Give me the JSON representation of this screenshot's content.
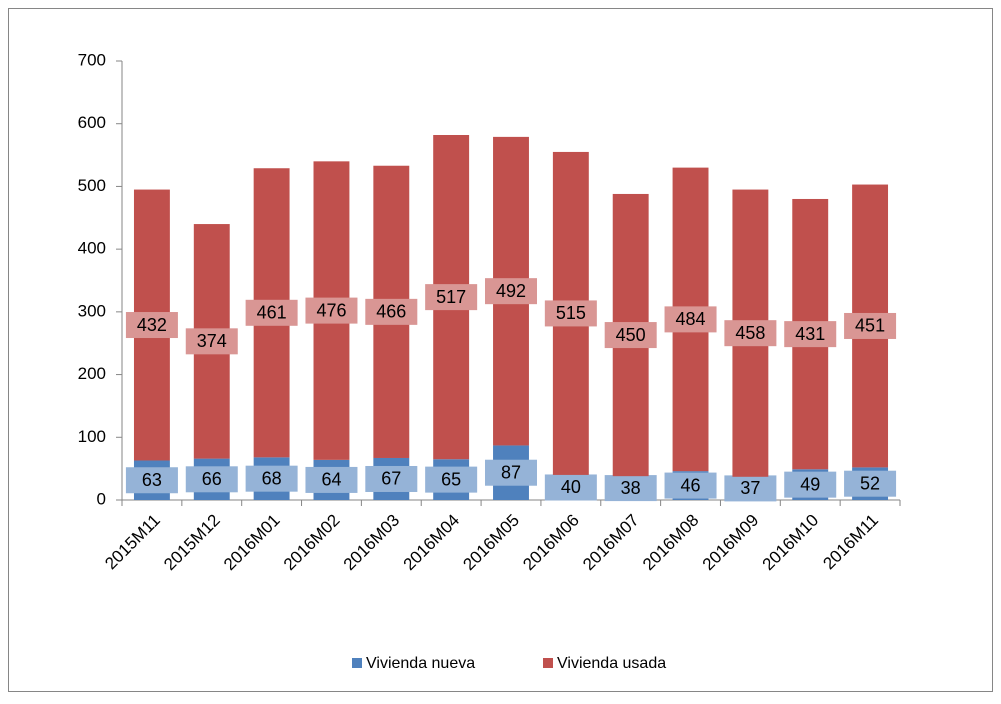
{
  "chart_data": {
    "type": "stacked-bar",
    "categories": [
      "2015M11",
      "2015M12",
      "2016M01",
      "2016M02",
      "2016M03",
      "2016M04",
      "2016M05",
      "2016M06",
      "2016M07",
      "2016M08",
      "2016M09",
      "2016M10",
      "2016M11"
    ],
    "series": [
      {
        "name": "Vivienda nueva",
        "color": "#4f81bd",
        "label_color": "#95b3d7",
        "values": [
          63,
          66,
          68,
          64,
          67,
          65,
          87,
          40,
          38,
          46,
          37,
          49,
          52
        ]
      },
      {
        "name": "Vivienda usada",
        "color": "#c0504d",
        "label_color": "#d99694",
        "values": [
          432,
          374,
          461,
          476,
          466,
          517,
          492,
          515,
          450,
          484,
          458,
          431,
          451
        ]
      }
    ],
    "ylim": [
      0,
      700
    ],
    "yticks": [
      0,
      100,
      200,
      300,
      400,
      500,
      600,
      700
    ],
    "grid": false,
    "legend": "bottom"
  }
}
